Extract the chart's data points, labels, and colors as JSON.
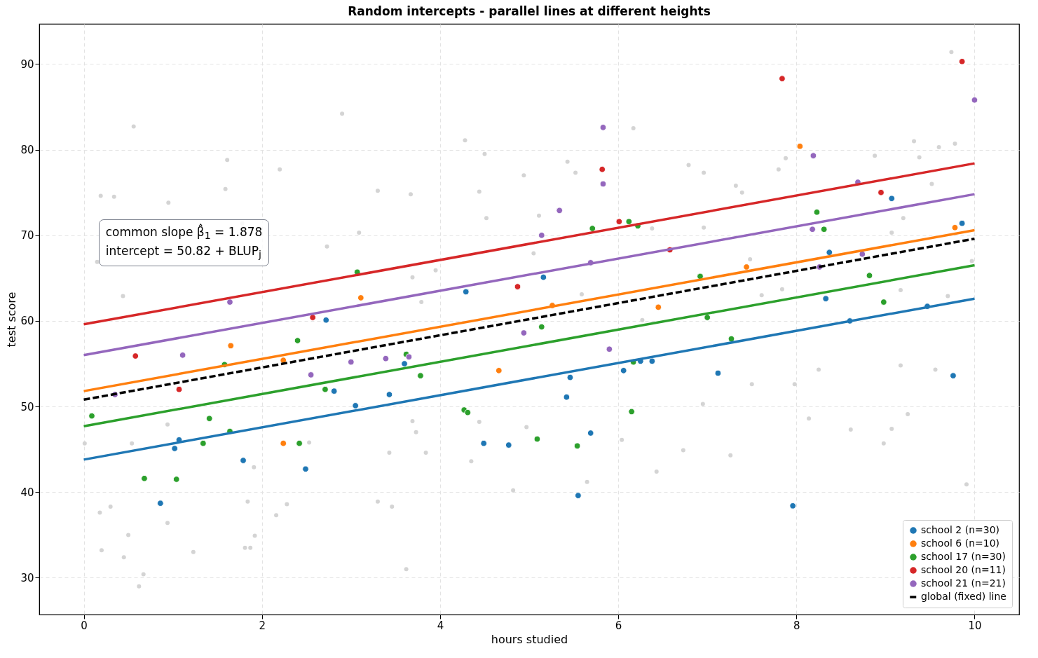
{
  "chart_data": {
    "type": "scatter",
    "title": "Random intercepts - parallel lines at different heights",
    "xlabel": "hours studied",
    "ylabel": "test score",
    "annotations": [
      "common slope β̂$_{1}$ = 1.878",
      "intercept  = 50.82 + BLUP$_{j}$"
    ],
    "xlim": [
      -0.5,
      10.5
    ],
    "ylim": [
      25.7,
      94.7
    ],
    "xticks": [
      0,
      2,
      4,
      6,
      8,
      10
    ],
    "yticks": [
      30,
      40,
      50,
      60,
      70,
      80,
      90
    ],
    "grid": true,
    "legend": "bottom right",
    "series": [
      {
        "marker": "circle",
        "color": "#d4d4d4",
        "x": [
          0.56,
          2.9,
          1.61,
          2.2,
          0.19,
          0.34,
          0.95,
          1.59,
          3.3,
          3.67,
          4.28,
          4.5,
          4.94,
          4.44,
          4.52,
          1.78,
          2.73,
          3.09,
          0.15,
          0.44,
          3.69,
          3.95,
          3.79,
          9.74,
          9.32,
          9.6,
          9.78,
          8.88,
          9.38,
          6.17,
          5.43,
          5.52,
          6.79,
          6.96,
          7.88,
          7.8,
          7.32,
          7.39,
          9.52,
          9.2,
          9.07,
          6.96,
          5.11,
          5.05,
          6.38,
          7.48,
          9.97,
          7.84,
          9.17,
          5.59,
          7.61,
          9.7,
          6.27,
          0.2,
          0.45,
          0.62,
          0.67,
          0.5,
          0.18,
          0.3,
          0.94,
          1.23,
          1.81,
          1.87,
          1.92,
          2.16,
          2.28,
          3.3,
          3.46,
          3.62,
          4.82,
          3.84,
          3.43,
          4.35,
          2.53,
          1.84,
          1.91,
          0.94,
          0.54,
          0.01,
          3.69,
          3.73,
          4.44,
          4.97,
          5.65,
          6.43,
          7.26,
          6.73,
          8.98,
          9.07,
          9.25,
          8.61,
          9.91,
          8.14,
          6.04,
          9.56,
          9.17,
          7.5,
          7.98,
          6.95,
          8.25
        ],
        "values": [
          82.7,
          84.2,
          78.8,
          77.7,
          74.6,
          74.5,
          73.8,
          75.4,
          75.2,
          74.8,
          81.1,
          79.5,
          77.0,
          75.1,
          72.0,
          71.4,
          68.7,
          70.3,
          66.9,
          62.9,
          65.1,
          65.9,
          62.2,
          91.4,
          81.0,
          80.3,
          80.7,
          79.3,
          79.1,
          82.5,
          78.6,
          77.3,
          78.2,
          77.3,
          79.0,
          77.7,
          75.8,
          75.0,
          76.0,
          72.0,
          70.3,
          70.9,
          72.3,
          67.9,
          70.8,
          67.2,
          67.0,
          63.7,
          63.6,
          63.1,
          63.0,
          62.9,
          60.1,
          33.2,
          32.4,
          29.0,
          30.4,
          35.0,
          37.6,
          38.3,
          36.4,
          33.0,
          33.5,
          33.5,
          34.9,
          37.3,
          38.6,
          38.9,
          38.3,
          31.0,
          40.2,
          44.6,
          44.6,
          43.6,
          45.8,
          38.9,
          42.9,
          47.9,
          45.7,
          45.7,
          48.3,
          47.0,
          48.2,
          47.6,
          41.2,
          42.4,
          44.3,
          44.9,
          45.7,
          47.4,
          49.1,
          47.3,
          40.9,
          48.6,
          46.1,
          54.3,
          54.8,
          52.6,
          52.6,
          50.3,
          54.3
        ]
      },
      {
        "marker": "circle",
        "name": "school 2 (n=30)",
        "color": "#1f77b4",
        "x": [
          0.86,
          1.02,
          1.07,
          1.79,
          2.49,
          2.72,
          2.81,
          3.05,
          3.43,
          3.6,
          4.29,
          4.49,
          4.77,
          5.16,
          5.42,
          5.46,
          5.55,
          5.69,
          6.06,
          6.25,
          6.38,
          7.12,
          7.96,
          8.33,
          8.37,
          8.6,
          9.07,
          9.47,
          9.76,
          9.86
        ],
        "values": [
          38.7,
          45.1,
          46.1,
          43.7,
          42.7,
          60.1,
          51.8,
          50.1,
          51.4,
          55.0,
          63.4,
          45.7,
          45.5,
          65.1,
          51.1,
          53.4,
          39.6,
          46.9,
          54.2,
          55.3,
          55.3,
          53.9,
          38.4,
          62.6,
          68.0,
          60.0,
          74.3,
          61.7,
          53.6,
          71.4
        ]
      },
      {
        "marker": "circle",
        "name": "school 6 (n=10)",
        "color": "#ff7f0e",
        "x": [
          1.65,
          2.24,
          2.24,
          3.11,
          4.66,
          5.26,
          6.45,
          7.44,
          8.04,
          9.78
        ],
        "values": [
          57.1,
          45.7,
          55.4,
          62.7,
          54.2,
          61.8,
          61.6,
          66.3,
          80.4,
          70.9
        ]
      },
      {
        "marker": "circle",
        "name": "school 17 (n=30)",
        "color": "#2ca02c",
        "x": [
          0.09,
          0.68,
          1.04,
          1.34,
          1.41,
          1.58,
          1.64,
          2.4,
          2.42,
          2.71,
          3.07,
          3.62,
          3.78,
          4.27,
          4.31,
          5.09,
          5.14,
          5.54,
          5.71,
          6.12,
          6.15,
          6.17,
          6.22,
          6.92,
          7.0,
          7.27,
          8.23,
          8.31,
          8.82,
          8.98
        ],
        "values": [
          48.9,
          41.6,
          41.5,
          45.7,
          48.6,
          54.9,
          47.1,
          57.7,
          45.7,
          52.0,
          65.7,
          56.1,
          53.6,
          49.6,
          49.3,
          46.2,
          59.3,
          45.4,
          70.8,
          71.6,
          49.4,
          55.2,
          71.1,
          65.2,
          60.4,
          57.9,
          72.7,
          70.7,
          65.3,
          62.2
        ]
      },
      {
        "marker": "circle",
        "name": "school 20 (n=11)",
        "color": "#d62728",
        "x": [
          0.58,
          1.07,
          2.57,
          4.87,
          5.82,
          6.01,
          6.58,
          7.84,
          8.95,
          9.86
        ],
        "values": [
          55.9,
          52.0,
          60.4,
          64.0,
          77.7,
          71.6,
          68.3,
          88.3,
          75.0,
          90.3
        ]
      },
      {
        "marker": "circle",
        "name": "school 21 (n=21)",
        "color": "#9467bd",
        "x": [
          0.35,
          1.11,
          1.64,
          2.55,
          3.0,
          3.39,
          3.65,
          4.94,
          5.14,
          5.34,
          5.69,
          5.83,
          5.83,
          5.9,
          8.18,
          8.19,
          8.26,
          8.69,
          8.74,
          10.0
        ],
        "values": [
          51.4,
          56.0,
          62.2,
          53.7,
          55.2,
          55.6,
          55.8,
          58.6,
          70.0,
          72.9,
          66.8,
          76.0,
          82.6,
          56.7,
          70.7,
          79.3,
          66.3,
          76.2,
          67.8,
          85.8
        ]
      },
      {
        "type": "line",
        "color": "#1f77b4",
        "x": [
          0,
          10
        ],
        "values": [
          43.8,
          62.6
        ]
      },
      {
        "type": "line",
        "color": "#ff7f0e",
        "x": [
          0,
          10
        ],
        "values": [
          51.8,
          70.6
        ]
      },
      {
        "type": "line",
        "color": "#2ca02c",
        "x": [
          0,
          10
        ],
        "values": [
          47.7,
          66.5
        ]
      },
      {
        "type": "line",
        "color": "#d62728",
        "x": [
          0,
          10
        ],
        "values": [
          59.6,
          78.4
        ]
      },
      {
        "type": "line",
        "color": "#9467bd",
        "x": [
          0,
          10
        ],
        "values": [
          56.0,
          74.8
        ]
      },
      {
        "type": "line",
        "name": "global (fixed) line",
        "color": "#000000",
        "line_style": "dashed",
        "x": [
          0,
          10
        ],
        "values": [
          50.8,
          69.6
        ]
      }
    ]
  }
}
